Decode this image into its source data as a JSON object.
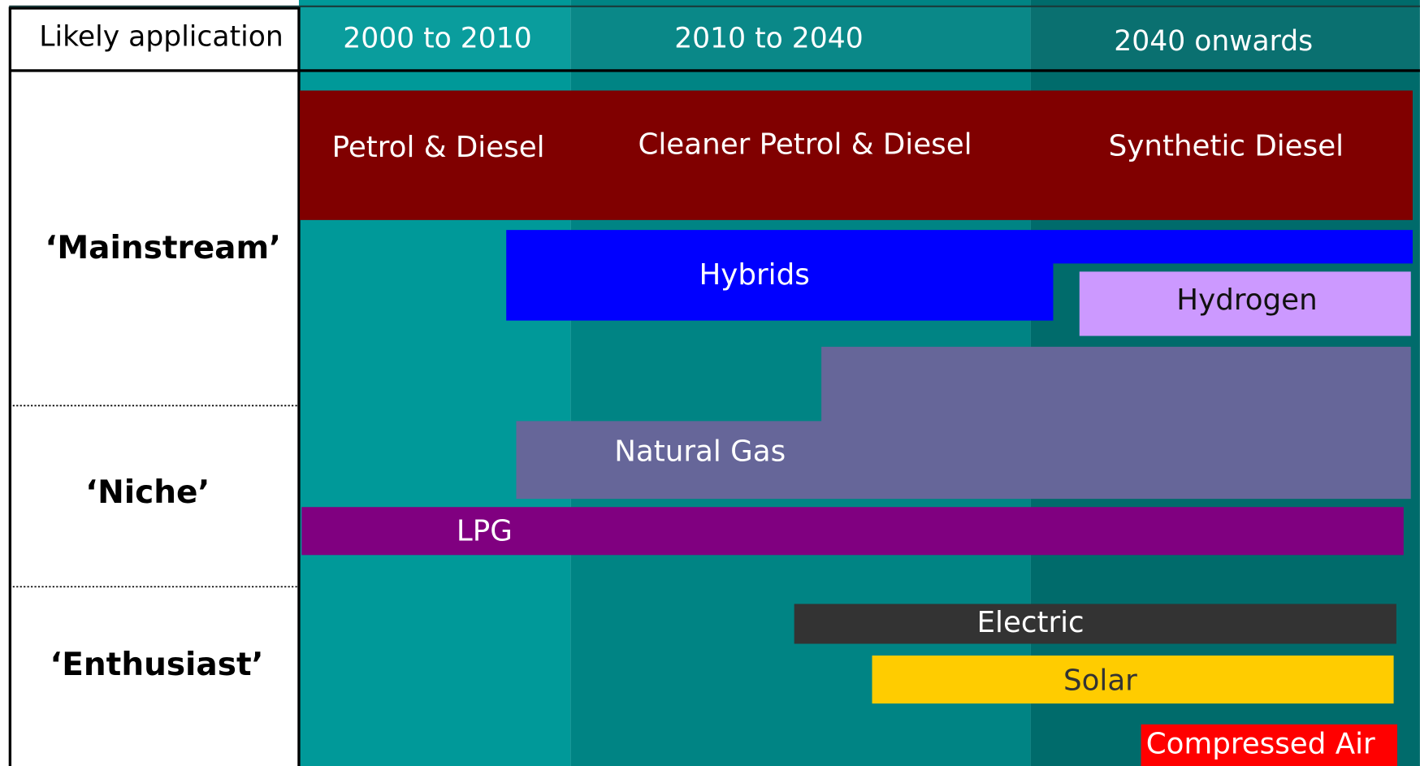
{
  "header": {
    "label": "Likely application",
    "periods": [
      "2000 to 2010",
      "2010 to 2040",
      "2040 onwards"
    ]
  },
  "rows": [
    "‘Mainstream’",
    "‘Niche’",
    "‘Enthusiast’"
  ],
  "bars": {
    "petrol_diesel": [
      "Petrol & Diesel",
      "Cleaner Petrol & Diesel",
      "Synthetic Diesel"
    ],
    "hybrids": "Hybrids",
    "hydrogen": "Hydrogen",
    "natural_gas": "Natural Gas",
    "lpg": "LPG",
    "electric": "Electric",
    "solar": "Solar",
    "compressed_air": "Compressed Air"
  }
}
